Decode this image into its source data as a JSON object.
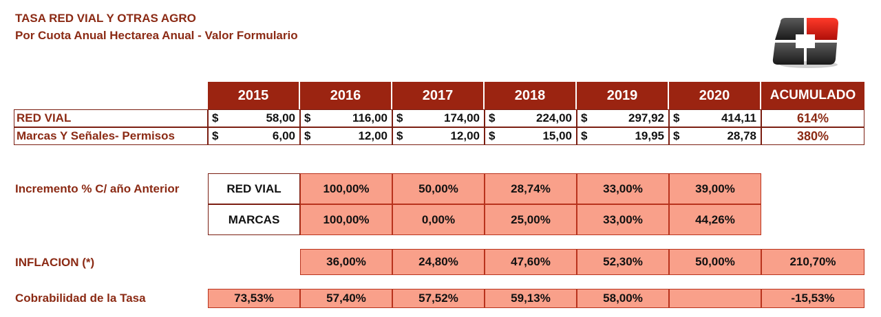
{
  "title": "TASA RED VIAL Y OTRAS AGRO",
  "subtitle": "Por Cuota Anual Hectarea Anual - Valor Formulario",
  "currency_symbol": "$",
  "headers": [
    "2015",
    "2016",
    "2017",
    "2018",
    "2019",
    "2020",
    "ACUMULADO"
  ],
  "rows": [
    {
      "label": "RED VIAL",
      "values": [
        "58,00",
        "116,00",
        "174,00",
        "224,00",
        "297,92",
        "414,11"
      ],
      "total": "614%"
    },
    {
      "label": "Marcas Y Señales- Permisos",
      "values": [
        "6,00",
        "12,00",
        "12,00",
        "15,00",
        "19,95",
        "28,78"
      ],
      "total": "380%"
    }
  ],
  "increment": {
    "label": "Incremento % C/ año Anterior",
    "rows": [
      {
        "label": "RED VIAL",
        "values": [
          "100,00%",
          "50,00%",
          "28,74%",
          "33,00%",
          "39,00%"
        ]
      },
      {
        "label": "MARCAS",
        "values": [
          "100,00%",
          "0,00%",
          "25,00%",
          "33,00%",
          "44,26%"
        ]
      }
    ]
  },
  "inflation": {
    "label": "INFLACION (*)",
    "values": [
      "36,00%",
      "24,80%",
      "47,60%",
      "52,30%",
      "50,00%",
      "210,70%"
    ]
  },
  "collectability": {
    "label": "Cobrabilidad de la Tasa",
    "values": [
      "73,53%",
      "57,40%",
      "57,52%",
      "59,13%",
      "58,00%",
      "",
      "-15,53%"
    ]
  },
  "colors": {
    "header_bg": "#9b2411",
    "text_red": "#8b2a14",
    "cell_salmon": "#f9a08a"
  }
}
